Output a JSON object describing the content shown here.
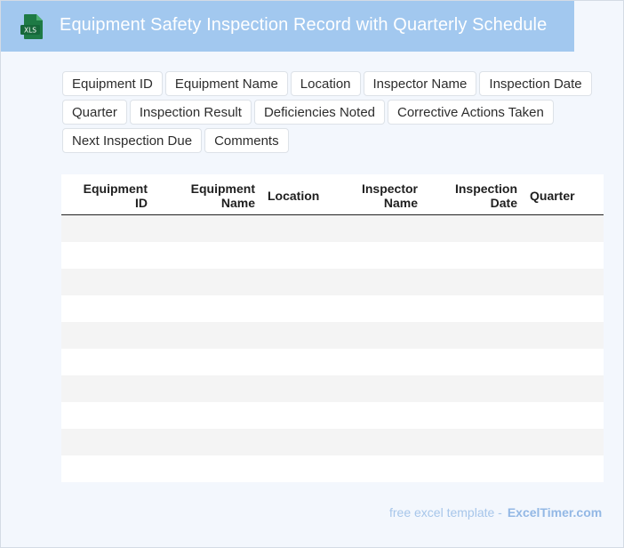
{
  "header": {
    "title": "Equipment Safety Inspection Record with Quarterly Schedule",
    "icon_label": "XLS",
    "bg_color": "#a2c8ef"
  },
  "chips": [
    "Equipment ID",
    "Equipment Name",
    "Location",
    "Inspector Name",
    "Inspection Date",
    "Quarter",
    "Inspection Result",
    "Deficiencies Noted",
    "Corrective Actions Taken",
    "Next Inspection Due",
    "Comments"
  ],
  "table": {
    "columns": [
      {
        "line1": "Equipment",
        "line2": "ID"
      },
      {
        "line1": "Equipment",
        "line2": "Name"
      },
      {
        "line1": "Location",
        "line2": ""
      },
      {
        "line1": "Inspector",
        "line2": "Name"
      },
      {
        "line1": "Inspection",
        "line2": "Date"
      },
      {
        "line1": "Quarter",
        "line2": ""
      }
    ],
    "row_count": 10
  },
  "footer": {
    "text": "free excel template -",
    "brand": "ExcelTimer.com"
  }
}
